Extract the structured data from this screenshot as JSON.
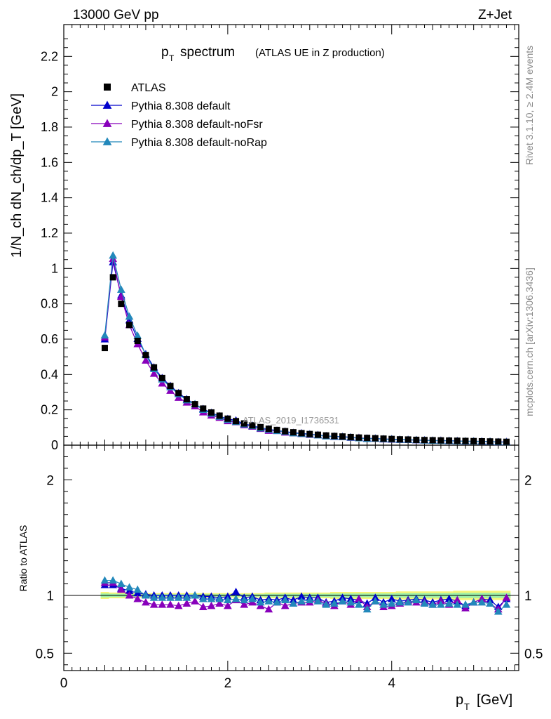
{
  "header": {
    "left": "13000 GeV pp",
    "right": "Z+Jet"
  },
  "side_labels": {
    "rivet": "Rivet 3.1.10, ≥ 2.4M events",
    "mcplots": "mcplots.cern.ch [arXiv:1306.3436]"
  },
  "watermark": "ATLAS_2019_I1736531",
  "chart_data": {
    "type": "line",
    "title": "p_T spectrum",
    "title_main": "p",
    "title_sub": "T",
    "title_rest": "spectrum",
    "subtitle": "(ATLAS UE in Z production)",
    "xlabel": "p_T [GeV]",
    "xlabel_main": "p",
    "xlabel_sub": "T",
    "xlabel_unit": "[GeV]",
    "ylabel": "1/N_ch dN_ch/dp_T [GeV]",
    "ratio_ylabel": "Ratio to ATLAS",
    "xlim": [
      0,
      5.55
    ],
    "ylim": [
      0,
      2.38
    ],
    "ratio_ylim": [
      0.35,
      2.3
    ],
    "x_ticks": [
      "0",
      "2",
      "4"
    ],
    "y_ticks": [
      "0",
      "0.2",
      "0.4",
      "0.6",
      "0.8",
      "1",
      "1.2",
      "1.4",
      "1.6",
      "1.8",
      "2",
      "2.2"
    ],
    "ratio_ticks": [
      "0.5",
      "1",
      "2"
    ],
    "legend_position": "top-left",
    "x": [
      0.5,
      0.6,
      0.7,
      0.8,
      0.9,
      1.0,
      1.1,
      1.2,
      1.3,
      1.4,
      1.5,
      1.6,
      1.7,
      1.8,
      1.9,
      2.0,
      2.1,
      2.2,
      2.3,
      2.4,
      2.5,
      2.6,
      2.7,
      2.8,
      2.9,
      3.0,
      3.1,
      3.2,
      3.3,
      3.4,
      3.5,
      3.6,
      3.7,
      3.8,
      3.9,
      4.0,
      4.1,
      4.2,
      4.3,
      4.4,
      4.5,
      4.6,
      4.7,
      4.8,
      4.9,
      5.0,
      5.1,
      5.2,
      5.3,
      5.4
    ],
    "data": {
      "name": "ATLAS",
      "values": [
        0.55,
        0.95,
        0.8,
        0.68,
        0.59,
        0.51,
        0.44,
        0.38,
        0.335,
        0.295,
        0.26,
        0.232,
        0.207,
        0.185,
        0.167,
        0.15,
        0.136,
        0.123,
        0.112,
        0.102,
        0.093,
        0.086,
        0.079,
        0.073,
        0.068,
        0.063,
        0.059,
        0.055,
        0.052,
        0.049,
        0.046,
        0.043,
        0.041,
        0.039,
        0.037,
        0.035,
        0.033,
        0.032,
        0.03,
        0.029,
        0.028,
        0.027,
        0.026,
        0.025,
        0.024,
        0.023,
        0.022,
        0.021,
        0.02,
        0.019
      ],
      "band_half_width": [
        0.03,
        0.025,
        0.025,
        0.02,
        0.02,
        0.02,
        0.02,
        0.02,
        0.02,
        0.02,
        0.02,
        0.02,
        0.02,
        0.02,
        0.02,
        0.02,
        0.02,
        0.02,
        0.02,
        0.02,
        0.025,
        0.025,
        0.025,
        0.025,
        0.025,
        0.025,
        0.025,
        0.025,
        0.03,
        0.03,
        0.03,
        0.03,
        0.03,
        0.03,
        0.03,
        0.03,
        0.035,
        0.035,
        0.035,
        0.035,
        0.035,
        0.035,
        0.035,
        0.04,
        0.04,
        0.04,
        0.04,
        0.04,
        0.04,
        0.04
      ]
    },
    "series": [
      {
        "name": "Pythia 8.308 default",
        "color": "#0000cc",
        "ratio": [
          1.09,
          1.09,
          1.06,
          1.04,
          1.02,
          1.01,
          1.0,
          1.0,
          1.0,
          1.0,
          1.0,
          1.0,
          0.99,
          0.99,
          0.98,
          0.99,
          1.03,
          0.98,
          0.99,
          0.96,
          0.97,
          0.96,
          0.98,
          0.96,
          0.99,
          0.98,
          0.98,
          0.94,
          0.95,
          0.98,
          0.97,
          0.96,
          0.93,
          0.98,
          0.94,
          0.97,
          0.95,
          0.96,
          0.97,
          0.96,
          0.94,
          0.96,
          0.97,
          0.95,
          0.91,
          0.94,
          0.97,
          0.96,
          0.9,
          0.97
        ]
      },
      {
        "name": "Pythia 8.308 default-noFsr",
        "color": "#8800bb",
        "ratio": [
          1.11,
          1.11,
          1.05,
          1.0,
          0.97,
          0.94,
          0.92,
          0.92,
          0.92,
          0.91,
          0.93,
          0.95,
          0.9,
          0.91,
          0.93,
          0.91,
          0.96,
          0.92,
          0.94,
          0.91,
          0.88,
          0.94,
          0.91,
          0.93,
          0.94,
          0.94,
          0.96,
          0.93,
          0.91,
          0.95,
          0.92,
          0.97,
          0.9,
          0.95,
          0.9,
          0.91,
          0.93,
          0.95,
          0.94,
          0.94,
          0.92,
          0.95,
          0.92,
          0.96,
          0.89,
          0.94,
          0.97,
          0.93,
          0.88,
          0.98
        ]
      },
      {
        "name": "Pythia 8.308 default-noRap",
        "color": "#2288bb",
        "ratio": [
          1.13,
          1.13,
          1.1,
          1.07,
          1.05,
          1.0,
          0.98,
          0.98,
          0.98,
          0.98,
          0.98,
          1.0,
          0.97,
          0.97,
          0.97,
          0.96,
          0.97,
          0.96,
          0.97,
          0.94,
          0.95,
          0.94,
          0.96,
          0.93,
          0.95,
          0.96,
          0.95,
          0.92,
          0.93,
          0.95,
          0.94,
          0.92,
          0.88,
          0.95,
          0.92,
          0.93,
          0.94,
          0.94,
          0.96,
          0.93,
          0.92,
          0.92,
          0.93,
          0.92,
          0.92,
          0.94,
          0.94,
          0.93,
          0.86,
          0.92
        ]
      }
    ]
  }
}
